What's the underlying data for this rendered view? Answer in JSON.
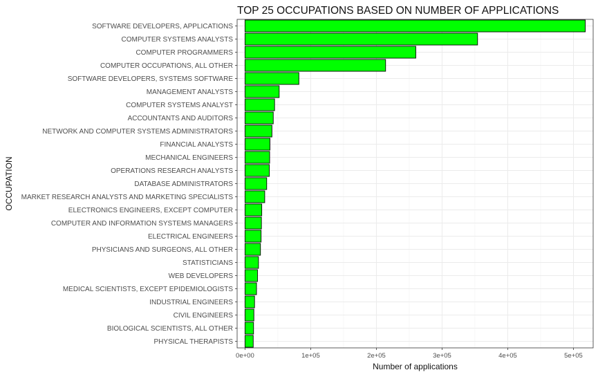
{
  "chart_data": {
    "type": "bar",
    "orientation": "horizontal",
    "title": "TOP 25 OCCUPATIONS BASED ON NUMBER OF APPLICATIONS",
    "xlabel": "Number of applications",
    "ylabel": "OCCUPATION",
    "xlim": [
      -12000,
      530000
    ],
    "x_ticks": [
      0,
      100000,
      200000,
      300000,
      400000,
      500000
    ],
    "x_tick_labels": [
      "0e+00",
      "1e+05",
      "2e+05",
      "3e+05",
      "4e+05",
      "5e+05"
    ],
    "grid": true,
    "bar_color": "#00ff00",
    "bar_outline": "#000000",
    "categories": [
      "SOFTWARE DEVELOPERS, APPLICATIONS",
      "COMPUTER SYSTEMS ANALYSTS",
      "COMPUTER PROGRAMMERS",
      "COMPUTER OCCUPATIONS, ALL OTHER",
      "SOFTWARE DEVELOPERS, SYSTEMS SOFTWARE",
      "MANAGEMENT ANALYSTS",
      "COMPUTER SYSTEMS ANALYST",
      "ACCOUNTANTS AND AUDITORS",
      "NETWORK AND COMPUTER SYSTEMS ADMINISTRATORS",
      "FINANCIAL ANALYSTS",
      "MECHANICAL ENGINEERS",
      "OPERATIONS RESEARCH ANALYSTS",
      "DATABASE ADMINISTRATORS",
      "MARKET RESEARCH ANALYSTS AND MARKETING SPECIALISTS",
      "ELECTRONICS ENGINEERS, EXCEPT COMPUTER",
      "COMPUTER AND INFORMATION SYSTEMS MANAGERS",
      "ELECTRICAL ENGINEERS",
      "PHYSICIANS AND SURGEONS, ALL OTHER",
      "STATISTICIANS",
      "WEB DEVELOPERS",
      "MEDICAL SCIENTISTS, EXCEPT EPIDEMIOLOGISTS",
      "INDUSTRIAL ENGINEERS",
      "CIVIL ENGINEERS",
      "BIOLOGICAL SCIENTISTS, ALL OTHER",
      "PHYSICAL THERAPISTS"
    ],
    "values": [
      518000,
      354000,
      260000,
      214000,
      82000,
      52000,
      45000,
      43000,
      41000,
      38000,
      37500,
      37000,
      33000,
      30000,
      25500,
      25000,
      24500,
      23500,
      20500,
      19000,
      17500,
      14500,
      13500,
      13000,
      12500
    ]
  }
}
